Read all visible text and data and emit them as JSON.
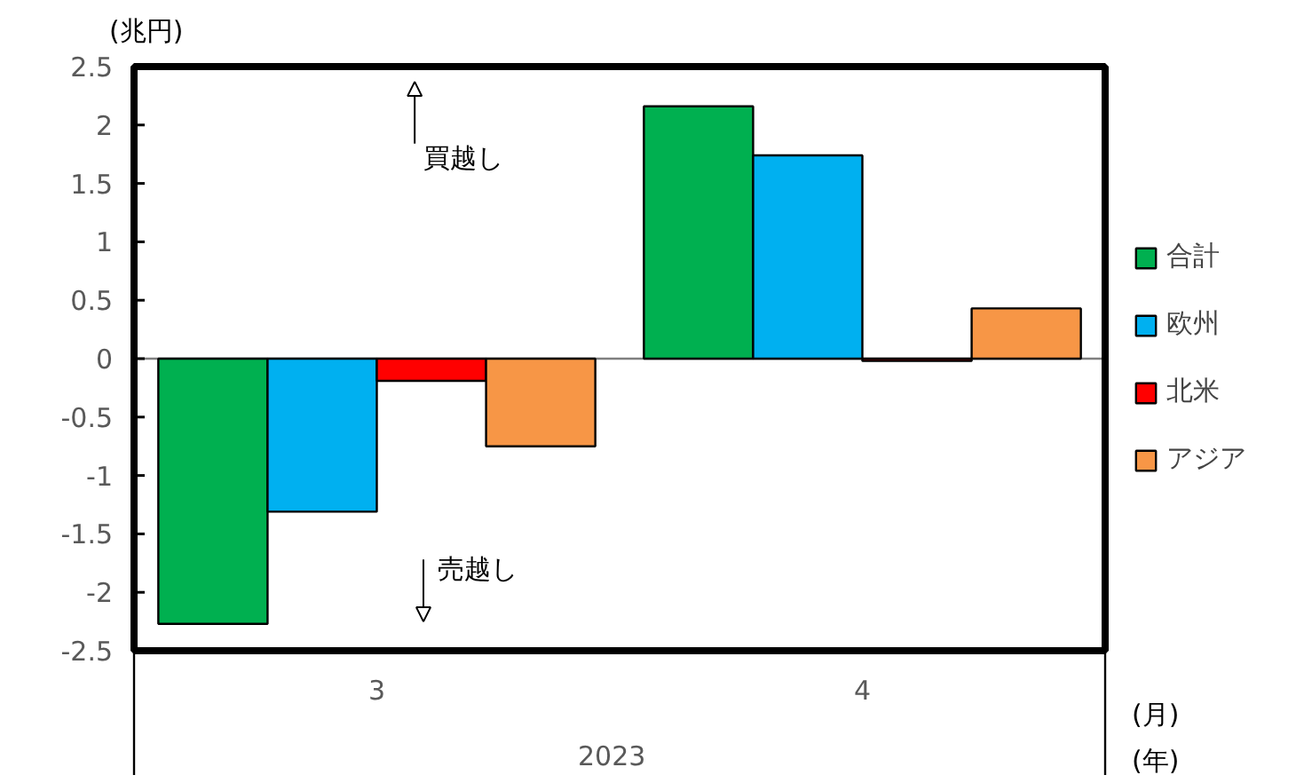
{
  "chart_data": {
    "type": "bar",
    "ylabel": "(兆円)",
    "categories": [
      "3",
      "4"
    ],
    "series": [
      {
        "name": "合計",
        "color": "#00b050",
        "values": [
          -2.27,
          2.16
        ]
      },
      {
        "name": "欧州",
        "color": "#00b0f0",
        "values": [
          -1.31,
          1.74
        ]
      },
      {
        "name": "北米",
        "color": "#ff0000",
        "values": [
          -0.19,
          -0.02
        ]
      },
      {
        "name": "アジア",
        "color": "#f79646",
        "values": [
          -0.75,
          0.43
        ]
      }
    ],
    "ylim": [
      -2.5,
      2.5
    ],
    "yticks": [
      -2.5,
      -2,
      -1.5,
      -1,
      -0.5,
      0,
      0.5,
      1,
      1.5,
      2,
      2.5
    ],
    "annotations": [
      "買越し",
      "売越し",
      "(月)",
      "(年)",
      "2023"
    ],
    "legend": "right"
  }
}
